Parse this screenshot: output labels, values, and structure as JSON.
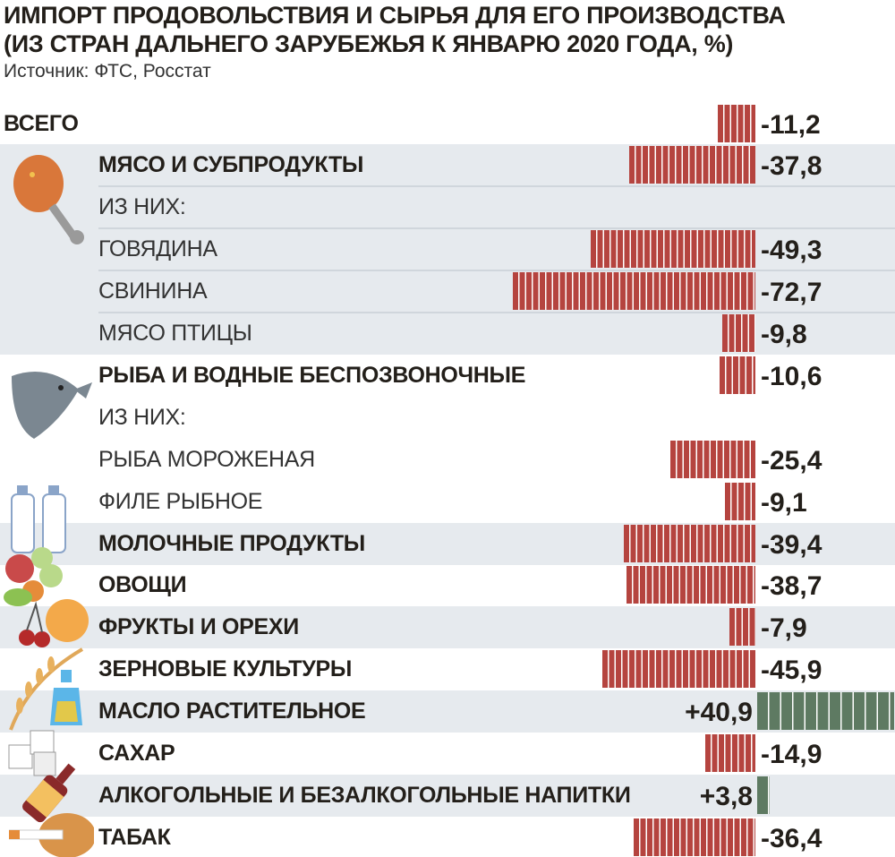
{
  "title_lines": [
    "ИМПОРТ ПРОДОВОЛЬСТВИЯ И СЫРЬЯ ДЛЯ ЕГО ПРОИЗВОДСТВА",
    "(ИЗ СТРАН ДАЛЬНЕГО ЗАРУБЕЖЬЯ К ЯНВАРЮ 2020 ГОДА, %)"
  ],
  "source": "Источник: ФТС, Росстат",
  "colors": {
    "negative": "#b5443f",
    "positive": "#5e7a62",
    "row_shade": "#e6eaee"
  },
  "chart_data": {
    "type": "bar",
    "orientation": "horizontal",
    "title": "ИМПОРТ ПРОДОВОЛЬСТВИЯ И СЫРЬЯ ДЛЯ ЕГО ПРОИЗВОДСТВА (ИЗ СТРАН ДАЛЬНЕГО ЗАРУБЕЖЬЯ К ЯНВАРЮ 2020 ГОДА, %)",
    "rows": [
      {
        "label": "ВСЕГО",
        "value": -11.2,
        "text": "-11,2",
        "style": "bold",
        "shade": false
      },
      {
        "label": "МЯСО И СУБПРОДУКТЫ",
        "value": -37.8,
        "text": "-37,8",
        "style": "bold",
        "shade": true,
        "icon": "chicken-leg-icon"
      },
      {
        "label": "ИЗ НИХ:",
        "value": null,
        "text": "",
        "style": "light",
        "shade": true
      },
      {
        "label": "ГОВЯДИНА",
        "value": -49.3,
        "text": "-49,3",
        "style": "light",
        "shade": true
      },
      {
        "label": "СВИНИНА",
        "value": -72.7,
        "text": "-72,7",
        "style": "light",
        "shade": true
      },
      {
        "label": "МЯСО ПТИЦЫ",
        "value": -9.8,
        "text": "-9,8",
        "style": "light",
        "shade": true
      },
      {
        "label": "РЫБА И ВОДНЫЕ БЕСПОЗВОНОЧНЫЕ",
        "value": -10.6,
        "text": "-10,6",
        "style": "bold",
        "shade": false,
        "icon": "fish-icon"
      },
      {
        "label": "ИЗ НИХ:",
        "value": null,
        "text": "",
        "style": "light",
        "shade": false
      },
      {
        "label": "РЫБА МОРОЖЕНАЯ",
        "value": -25.4,
        "text": "-25,4",
        "style": "light",
        "shade": false
      },
      {
        "label": "ФИЛЕ РЫБНОЕ",
        "value": -9.1,
        "text": "-9,1",
        "style": "light",
        "shade": false,
        "icon": "milk-bottles-icon"
      },
      {
        "label": "МОЛОЧНЫЕ ПРОДУКТЫ",
        "value": -39.4,
        "text": "-39,4",
        "style": "bold",
        "shade": true
      },
      {
        "label": "ОВОЩИ",
        "value": -38.7,
        "text": "-38,7",
        "style": "bold",
        "shade": false,
        "icon": "vegetables-icon"
      },
      {
        "label": "ФРУКТЫ И ОРЕХИ",
        "value": -7.9,
        "text": "-7,9",
        "style": "bold",
        "shade": true,
        "icon": "fruit-icon"
      },
      {
        "label": "ЗЕРНОВЫЕ КУЛЬТУРЫ",
        "value": -45.9,
        "text": "-45,9",
        "style": "bold",
        "shade": false,
        "icon": "wheat-icon"
      },
      {
        "label": "МАСЛО РАСТИТЕЛЬНОЕ",
        "value": 40.9,
        "text": "+40,9",
        "style": "bold",
        "shade": true,
        "icon": "oil-bottle-icon"
      },
      {
        "label": "САХАР",
        "value": -14.9,
        "text": "-14,9",
        "style": "bold",
        "shade": false,
        "icon": "sugar-cubes-icon"
      },
      {
        "label": "АЛКОГОЛЬНЫЕ И БЕЗАЛКОГОЛЬНЫЕ НАПИТКИ",
        "value": 3.8,
        "text": "+3,8",
        "style": "bold",
        "shade": true,
        "icon": "wine-bottle-icon"
      },
      {
        "label": "ТАБАК",
        "value": -36.4,
        "text": "-36,4",
        "style": "bold",
        "shade": false,
        "icon": "tobacco-icon"
      }
    ]
  }
}
